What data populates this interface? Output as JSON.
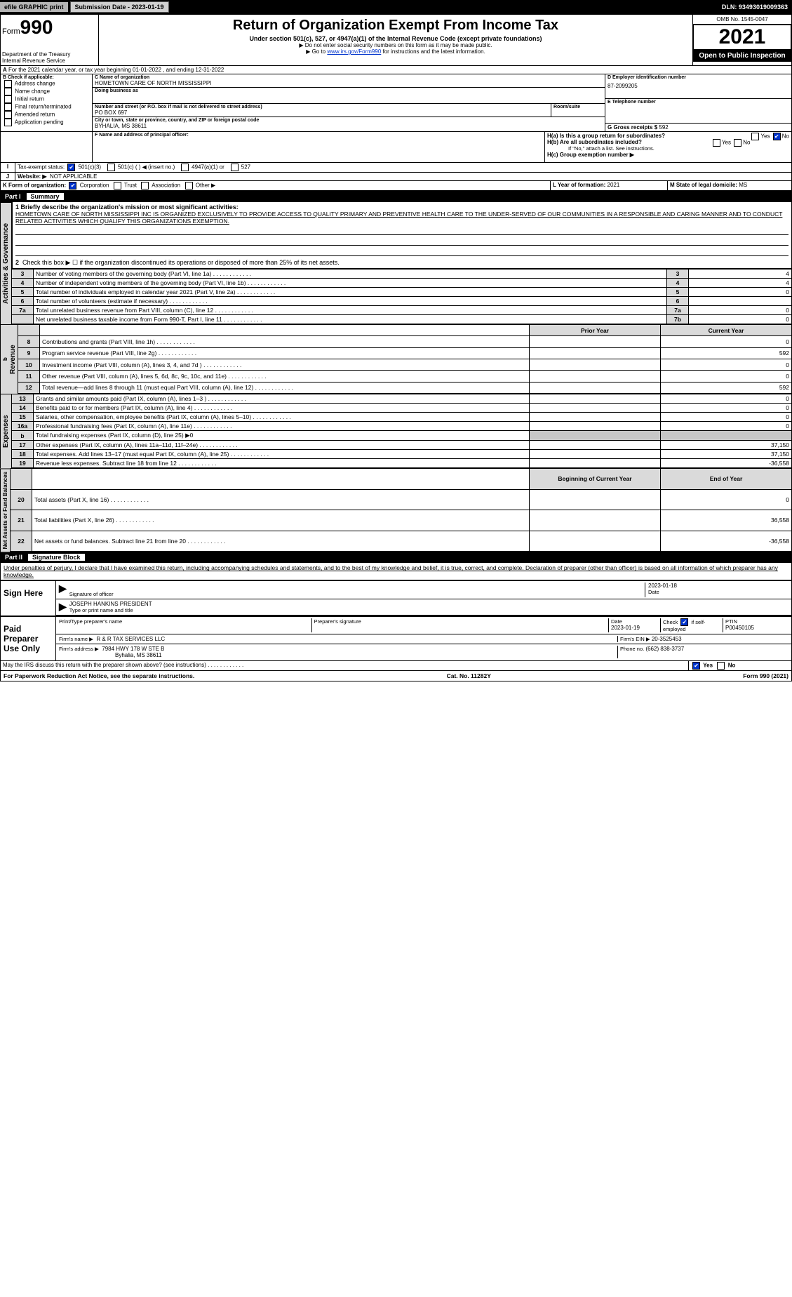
{
  "topbar": {
    "efile": "efile GRAPHIC print",
    "submission_label": "Submission Date - 2023-01-19",
    "dln": "DLN: 93493019009363"
  },
  "header": {
    "form_prefix": "Form",
    "form_number": "990",
    "dept": "Department of the Treasury",
    "irs": "Internal Revenue Service",
    "title": "Return of Organization Exempt From Income Tax",
    "subtitle": "Under section 501(c), 527, or 4947(a)(1) of the Internal Revenue Code (except private foundations)",
    "note1": "▶ Do not enter social security numbers on this form as it may be made public.",
    "note2_pre": "▶ Go to ",
    "note2_link": "www.irs.gov/Form990",
    "note2_post": " for instructions and the latest information.",
    "omb": "OMB No. 1545-0047",
    "year": "2021",
    "open": "Open to Public Inspection"
  },
  "A": {
    "line": "For the 2021 calendar year, or tax year beginning 01-01-2022    , and ending 12-31-2022"
  },
  "B": {
    "label": "B Check if applicable:",
    "items": [
      "Address change",
      "Name change",
      "Initial return",
      "Final return/terminated",
      "Amended return",
      "Application pending"
    ]
  },
  "C": {
    "name_lbl": "C Name of organization",
    "name": "HOMETOWN CARE OF NORTH MISSISSIPPI",
    "dba_lbl": "Doing business as",
    "dba": "",
    "street_lbl": "Number and street (or P.O. box if mail is not delivered to street address)",
    "room_lbl": "Room/suite",
    "street": "PO BOX 697",
    "city_lbl": "City or town, state or province, country, and ZIP or foreign postal code",
    "city": "BYHALIA, MS  38611"
  },
  "D": {
    "lbl": "D Employer identification number",
    "val": "87-2099205"
  },
  "E": {
    "lbl": "E Telephone number",
    "val": ""
  },
  "G": {
    "lbl": "G Gross receipts $",
    "val": "592"
  },
  "F": {
    "lbl": "F  Name and address of principal officer:",
    "val": ""
  },
  "H": {
    "a": "H(a)  Is this a group return for subordinates?",
    "a_yes": "Yes",
    "a_no": "No",
    "b": "H(b)  Are all subordinates included?",
    "b_yes": "Yes",
    "b_no": "No",
    "b_note": "If \"No,\" attach a list. See instructions.",
    "c": "H(c)  Group exemption number ▶"
  },
  "I": {
    "lbl": "Tax-exempt status:",
    "opts": [
      "501(c)(3)",
      "501(c) (  ) ◀ (insert no.)",
      "4947(a)(1) or",
      "527"
    ]
  },
  "J": {
    "lbl": "Website: ▶",
    "val": "NOT APPLICABLE"
  },
  "K": {
    "lbl": "K Form of organization:",
    "opts": [
      "Corporation",
      "Trust",
      "Association",
      "Other ▶"
    ]
  },
  "L": {
    "lbl": "L Year of formation:",
    "val": "2021"
  },
  "M": {
    "lbl": "M State of legal domicile:",
    "val": "MS"
  },
  "part1": {
    "name": "Part I",
    "title": "Summary",
    "q1": "1  Briefly describe the organization's mission or most significant activities:",
    "mission": "HOMETOWN CARE OF NORTH MISSISSIPPI INC IS ORGANIZED EXCLUSIVELY TO PROVIDE ACCESS TO QUALITY PRIMARY AND PREVENTIVE HEALTH CARE TO THE UNDER-SERVED OF OUR COMMUNITIES IN A RESPONSIBLE AND CARING MANNER AND TO CONDUCT RELATED ACTIVITIES WHICH QUALIFY THIS ORGANIZATIONS EXEMPTION.",
    "q2": "Check this box ▶ ☐  if the organization discontinued its operations or disposed of more than 25% of its net assets.",
    "side_gov": "Activities & Governance",
    "side_rev": "Revenue",
    "side_exp": "Expenses",
    "side_net": "Net Assets or Fund Balances",
    "rows_gov": [
      {
        "n": "3",
        "t": "Number of voting members of the governing body (Part VI, line 1a)",
        "box": "3",
        "v": "4"
      },
      {
        "n": "4",
        "t": "Number of independent voting members of the governing body (Part VI, line 1b)",
        "box": "4",
        "v": "4"
      },
      {
        "n": "5",
        "t": "Total number of individuals employed in calendar year 2021 (Part V, line 2a)",
        "box": "5",
        "v": "0"
      },
      {
        "n": "6",
        "t": "Total number of volunteers (estimate if necessary)",
        "box": "6",
        "v": ""
      },
      {
        "n": "7a",
        "t": "Total unrelated business revenue from Part VIII, column (C), line 12",
        "box": "7a",
        "v": "0"
      },
      {
        "n": "",
        "t": "Net unrelated business taxable income from Form 990-T, Part I, line 11",
        "box": "7b",
        "v": "0"
      }
    ],
    "col_prior": "Prior Year",
    "col_current": "Current Year",
    "rows_rev": [
      {
        "n": "8",
        "t": "Contributions and grants (Part VIII, line 1h)",
        "p": "",
        "c": "0"
      },
      {
        "n": "9",
        "t": "Program service revenue (Part VIII, line 2g)",
        "p": "",
        "c": "592"
      },
      {
        "n": "10",
        "t": "Investment income (Part VIII, column (A), lines 3, 4, and 7d )",
        "p": "",
        "c": "0"
      },
      {
        "n": "11",
        "t": "Other revenue (Part VIII, column (A), lines 5, 6d, 8c, 9c, 10c, and 11e)",
        "p": "",
        "c": "0"
      },
      {
        "n": "12",
        "t": "Total revenue—add lines 8 through 11 (must equal Part VIII, column (A), line 12)",
        "p": "",
        "c": "592"
      }
    ],
    "rows_exp": [
      {
        "n": "13",
        "t": "Grants and similar amounts paid (Part IX, column (A), lines 1–3 )",
        "p": "",
        "c": "0"
      },
      {
        "n": "14",
        "t": "Benefits paid to or for members (Part IX, column (A), line 4)",
        "p": "",
        "c": "0"
      },
      {
        "n": "15",
        "t": "Salaries, other compensation, employee benefits (Part IX, column (A), lines 5–10)",
        "p": "",
        "c": "0"
      },
      {
        "n": "16a",
        "t": "Professional fundraising fees (Part IX, column (A), line 11e)",
        "p": "",
        "c": "0"
      },
      {
        "n": "b",
        "t": "Total fundraising expenses (Part IX, column (D), line 25) ▶0",
        "p": "GRAY",
        "c": "GRAY"
      },
      {
        "n": "17",
        "t": "Other expenses (Part IX, column (A), lines 11a–11d, 11f–24e)",
        "p": "",
        "c": "37,150"
      },
      {
        "n": "18",
        "t": "Total expenses. Add lines 13–17 (must equal Part IX, column (A), line 25)",
        "p": "",
        "c": "37,150"
      },
      {
        "n": "19",
        "t": "Revenue less expenses. Subtract line 18 from line 12",
        "p": "",
        "c": "-36,558"
      }
    ],
    "col_begin": "Beginning of Current Year",
    "col_end": "End of Year",
    "rows_net": [
      {
        "n": "20",
        "t": "Total assets (Part X, line 16)",
        "p": "",
        "c": "0"
      },
      {
        "n": "21",
        "t": "Total liabilities (Part X, line 26)",
        "p": "",
        "c": "36,558"
      },
      {
        "n": "22",
        "t": "Net assets or fund balances. Subtract line 21 from line 20",
        "p": "",
        "c": "-36,558"
      }
    ]
  },
  "part2": {
    "name": "Part II",
    "title": "Signature Block",
    "decl": "Under penalties of perjury, I declare that I have examined this return, including accompanying schedules and statements, and to the best of my knowledge and belief, it is true, correct, and complete. Declaration of preparer (other than officer) is based on all information of which preparer has any knowledge.",
    "sign_here": "Sign Here",
    "sig_officer": "Signature of officer",
    "sig_date": "2023-01-18",
    "sig_name": "JOSEPH HANKINS PRESIDENT",
    "sig_name_lbl": "Type or print name and title",
    "paid": "Paid Preparer Use Only",
    "p_name_lbl": "Print/Type preparer's name",
    "p_sig_lbl": "Preparer's signature",
    "p_date_lbl": "Date",
    "p_date": "2023-01-19",
    "p_check_lbl": "Check ☑ if self-employed",
    "p_ptin_lbl": "PTIN",
    "p_ptin": "P00450105",
    "firm_name_lbl": "Firm's name    ▶",
    "firm_name": "R & R TAX SERVICES LLC",
    "firm_ein_lbl": "Firm's EIN ▶",
    "firm_ein": "20-3525453",
    "firm_addr_lbl": "Firm's address ▶",
    "firm_addr1": "7984 HWY 178 W STE B",
    "firm_addr2": "Byhalia, MS  38611",
    "firm_phone_lbl": "Phone no.",
    "firm_phone": "(662) 838-3737",
    "discuss": "May the IRS discuss this return with the preparer shown above? (see instructions)",
    "discuss_yes": "Yes",
    "discuss_no": "No"
  },
  "footer": {
    "pra": "For Paperwork Reduction Act Notice, see the separate instructions.",
    "cat": "Cat. No. 11282Y",
    "form": "Form 990 (2021)"
  }
}
